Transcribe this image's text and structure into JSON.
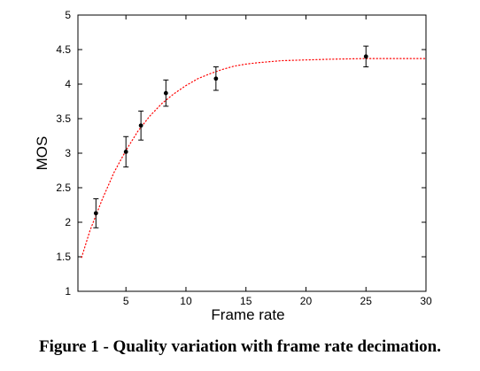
{
  "caption": "Figure 1 - Quality variation with frame rate decimation.",
  "chart_data": {
    "type": "scatter",
    "xlabel": "Frame rate",
    "ylabel": "MOS",
    "xlim": [
      1,
      30
    ],
    "ylim": [
      1,
      5
    ],
    "xticks": [
      5,
      10,
      15,
      20,
      25,
      30
    ],
    "yticks": [
      1,
      1.5,
      2,
      2.5,
      3,
      3.5,
      4,
      4.5,
      5
    ],
    "grid": false,
    "series": [
      {
        "kind": "points-with-error-bars",
        "color": "#000000",
        "x": [
          2.5,
          5,
          6.25,
          8.33,
          12.5,
          25
        ],
        "y": [
          2.13,
          3.02,
          3.4,
          3.87,
          4.08,
          4.4
        ],
        "err": [
          0.21,
          0.22,
          0.21,
          0.19,
          0.17,
          0.15
        ]
      },
      {
        "kind": "fitted-curve",
        "style": "dotted",
        "color": "#ff0000",
        "x": [
          1.3,
          2,
          3,
          4,
          5,
          6,
          7,
          8,
          9,
          10,
          11,
          12,
          13,
          14,
          15,
          16,
          18,
          20,
          22,
          25,
          28,
          30
        ],
        "y": [
          1.49,
          1.88,
          2.32,
          2.72,
          3.04,
          3.32,
          3.54,
          3.72,
          3.86,
          3.98,
          4.08,
          4.15,
          4.21,
          4.26,
          4.29,
          4.31,
          4.34,
          4.35,
          4.36,
          4.37,
          4.37,
          4.37
        ]
      }
    ]
  }
}
